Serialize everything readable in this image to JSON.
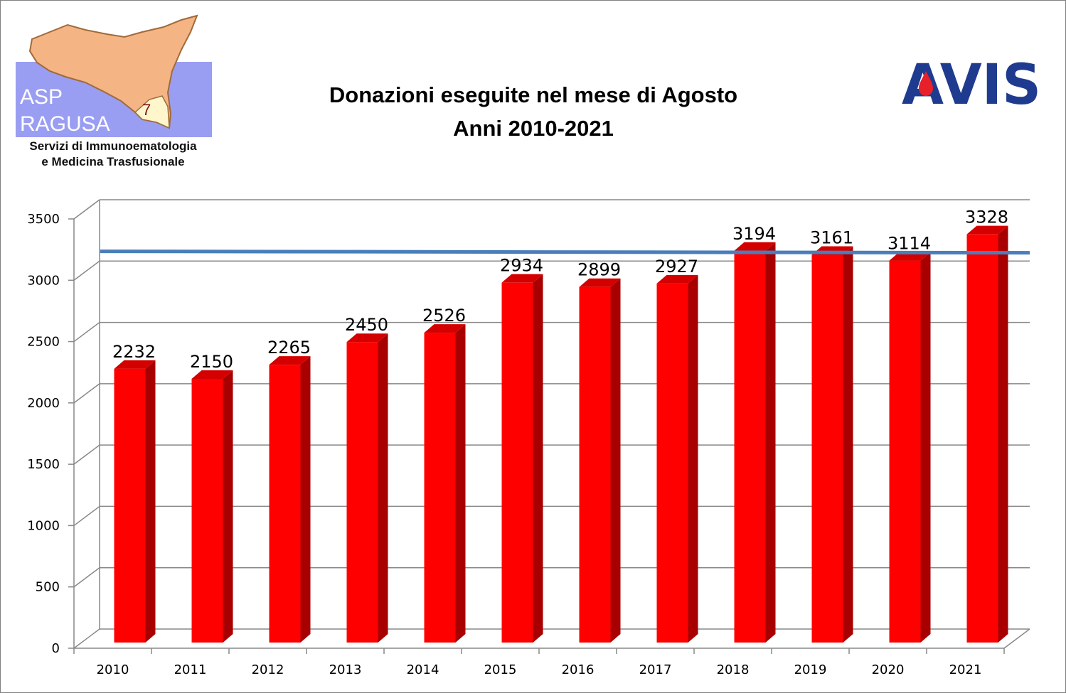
{
  "logo_left": {
    "line1": "ASP",
    "line2": "RAGUSA",
    "number": "7",
    "caption_line1": "Servizi di Immunoematologia",
    "caption_line2": "e Medicina Trasfusionale"
  },
  "logo_right": {
    "text": "AVIS"
  },
  "colors": {
    "bar_front": "#ff0000",
    "bar_side": "#a80000",
    "bar_top": "#d40000",
    "reference_line": "#4a7ebb"
  },
  "chart_data": {
    "type": "bar",
    "title": "Donazioni eseguite nel mese di Agosto",
    "subtitle": "Anni 2010-2021",
    "categories": [
      "2010",
      "2011",
      "2012",
      "2013",
      "2014",
      "2015",
      "2016",
      "2017",
      "2018",
      "2019",
      "2020",
      "2021"
    ],
    "values": [
      2232,
      2150,
      2265,
      2450,
      2526,
      2934,
      2899,
      2927,
      3194,
      3161,
      3114,
      3328
    ],
    "data_labels": [
      "2232",
      "2150",
      "2265",
      "2450",
      "2526",
      "2934",
      "2899",
      "2927",
      "3194",
      "3161",
      "3114",
      "3328"
    ],
    "ylim": [
      0,
      3500
    ],
    "yticks": [
      "0",
      "500",
      "1000",
      "1500",
      "2000",
      "2500",
      "3000",
      "3500"
    ],
    "reference_line": 3114,
    "grid": true,
    "style": "3d-bars"
  }
}
